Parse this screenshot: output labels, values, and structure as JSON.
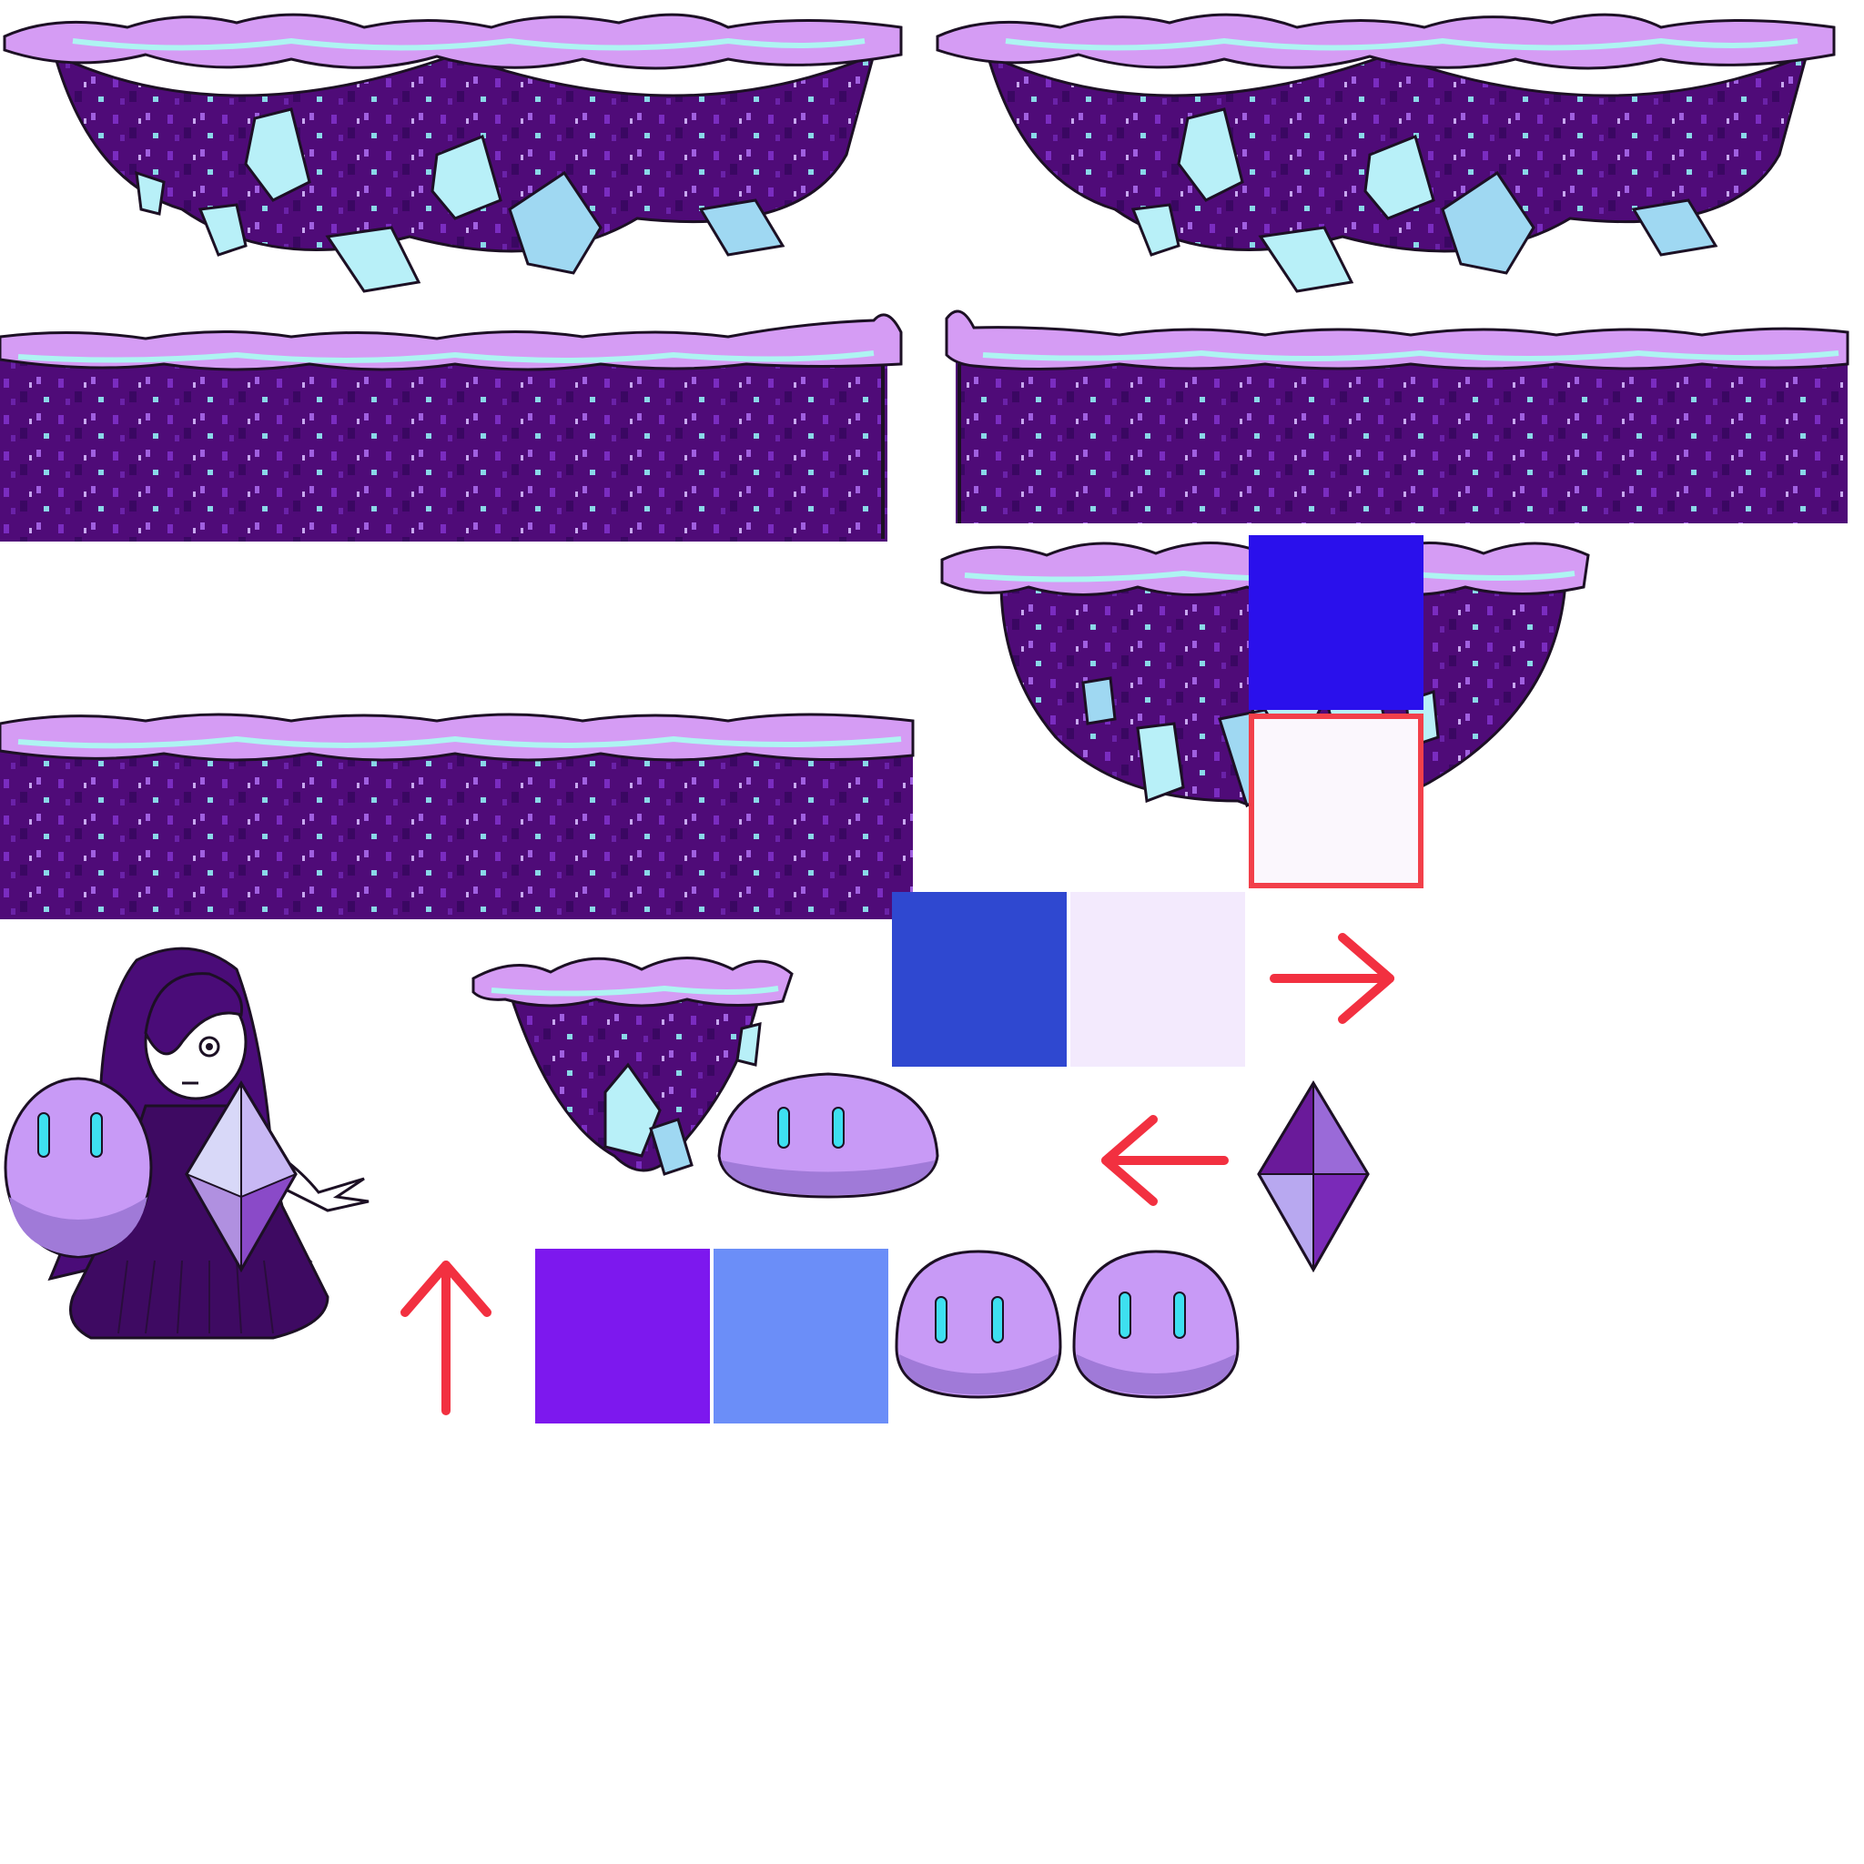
{
  "sheet": {
    "background": "#ffffff",
    "palette": {
      "outline": "#1c1024",
      "grass_light": "#d59cf4",
      "grass_mid": "#c070ee",
      "grass_pink": "#e6a3ff",
      "grass_cyan": "#aef4f2",
      "dirt": "#4f0b78",
      "dirt_dark": "#3a0762",
      "dirt_speck": "#8a3fd0",
      "dirt_speck_light": "#c8b0f0",
      "crystal_light": "#b8f0f8",
      "crystal_mid": "#9fd8f2",
      "crystal_shade": "#9fa0f0",
      "slime_body": "#c89af6",
      "slime_shade": "#a07ad8",
      "slime_eye": "#3ee0f0",
      "gem_dark": "#6a1a9a",
      "gem_mid": "#8a4ac8",
      "gem_light": "#c8b8f4",
      "hair": "#4a0c78",
      "dress": "#3e0a62",
      "skin": "#ffffff",
      "arrow_red": "#f23040"
    },
    "swatches": {
      "blue_square": "#2a10ec",
      "outlined_square_border": "#f2404a",
      "outlined_square_fill": "#fbf7fd",
      "royal_blue": "#2f48d0",
      "lavender_white": "#f3eafd",
      "violet": "#7d18ee",
      "cornflower": "#6b8ef8"
    },
    "sprites": [
      {
        "name": "floating-island-wide",
        "kind": "tile"
      },
      {
        "name": "floating-island-wide-copy",
        "kind": "tile"
      },
      {
        "name": "ground-block-right-edge",
        "kind": "tile"
      },
      {
        "name": "ground-block-left-edge",
        "kind": "tile"
      },
      {
        "name": "ground-block-plain",
        "kind": "tile"
      },
      {
        "name": "floating-island-round",
        "kind": "tile"
      },
      {
        "name": "floating-island-small",
        "kind": "tile"
      },
      {
        "name": "player-character",
        "kind": "character"
      },
      {
        "name": "slime-tall",
        "kind": "enemy"
      },
      {
        "name": "slime-flat",
        "kind": "enemy"
      },
      {
        "name": "slime-round-a",
        "kind": "enemy"
      },
      {
        "name": "slime-round-b",
        "kind": "enemy"
      },
      {
        "name": "gem-pickup-light",
        "kind": "collectible"
      },
      {
        "name": "gem-pickup-dark",
        "kind": "collectible"
      },
      {
        "name": "arrow-right",
        "kind": "ui"
      },
      {
        "name": "arrow-left",
        "kind": "ui"
      },
      {
        "name": "arrow-up",
        "kind": "ui"
      }
    ]
  }
}
